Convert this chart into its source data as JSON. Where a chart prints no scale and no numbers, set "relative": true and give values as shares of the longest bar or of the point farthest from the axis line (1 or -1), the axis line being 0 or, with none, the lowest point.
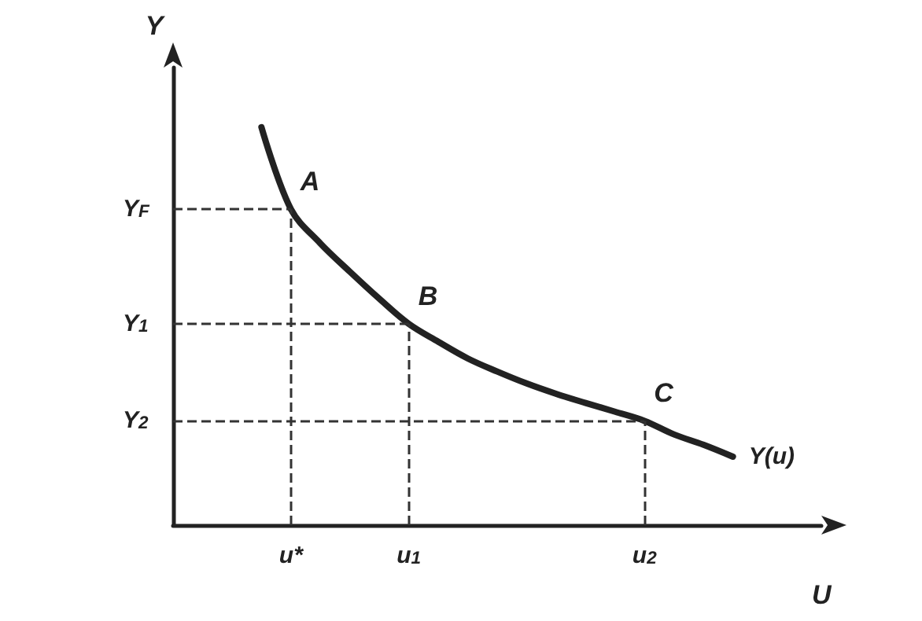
{
  "chart_data": {
    "type": "line",
    "relative": true,
    "xlabel": "U",
    "ylabel": "Y",
    "categories": [
      null,
      null,
      null,
      null,
      "u*",
      null,
      null,
      null,
      "u$_{1}$",
      null,
      null,
      null,
      null,
      null,
      null,
      null,
      "u$_{2}$",
      null,
      null,
      null,
      null,
      null,
      null
    ],
    "series": [
      {
        "name": "Y(u)",
        "color": "#222222",
        "values": [
          null,
          null,
          null,
          1.0,
          0.794,
          0.708,
          0.637,
          0.569,
          0.506,
          0.461,
          0.419,
          0.386,
          0.356,
          0.33,
          0.307,
          0.285,
          0.262,
          0.228,
          0.202,
          0.172,
          null,
          null,
          null
        ]
      }
    ],
    "ref_lines": [
      {
        "axis": "x",
        "value": "u*",
        "line_style": "dashed"
      },
      {
        "axis": "x",
        "value": "u$_{1}$",
        "line_style": "dashed"
      },
      {
        "axis": "x",
        "value": "u$_{2}$",
        "line_style": "dashed"
      },
      {
        "axis": "y",
        "value": 0.794,
        "label": "Y$_{F}$",
        "line_style": "dashed"
      },
      {
        "axis": "y",
        "value": 0.506,
        "label": "Y$_{1}$",
        "line_style": "dashed"
      },
      {
        "axis": "y",
        "value": 0.262,
        "label": "Y$_{2}$",
        "line_style": "dashed"
      }
    ],
    "annotations": [
      {
        "text": "A",
        "x": "u*",
        "y": 0.794
      },
      {
        "text": "B",
        "x": "u$_{1}$",
        "y": 0.506
      },
      {
        "text": "C",
        "x": "u$_{2}$",
        "y": 0.262
      }
    ],
    "marker": "none",
    "line_style": "solid",
    "legend": false,
    "grid": false
  }
}
